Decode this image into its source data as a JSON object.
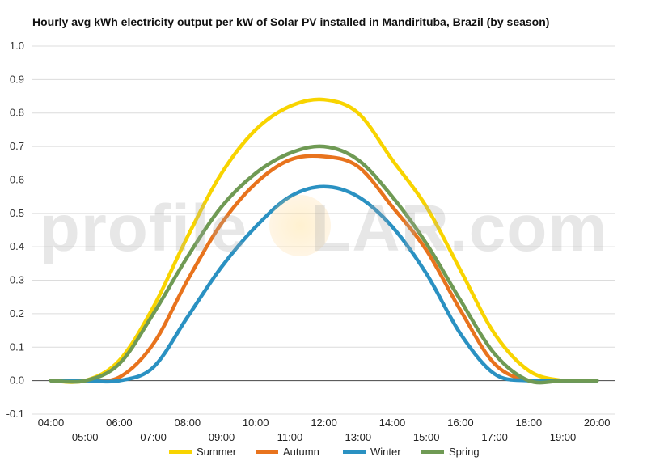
{
  "chart_data": {
    "type": "line",
    "title": "Hourly avg kWh electricity output per kW of Solar PV installed in Mandirituba, Brazil (by season)",
    "xlabel": "",
    "ylabel": "",
    "ylim": [
      -0.1,
      1.0
    ],
    "yticks": [
      "1.0",
      "0.9",
      "0.8",
      "0.7",
      "0.6",
      "0.5",
      "0.4",
      "0.3",
      "0.2",
      "0.1",
      "0.0",
      "-0.1"
    ],
    "categories": [
      "04:00",
      "05:00",
      "06:00",
      "07:00",
      "08:00",
      "09:00",
      "10:00",
      "11:00",
      "12:00",
      "13:00",
      "14:00",
      "15:00",
      "16:00",
      "17:00",
      "18:00",
      "19:00",
      "20:00"
    ],
    "grid": true,
    "legend": "bottom",
    "series": [
      {
        "name": "Summer",
        "color": "#f8d400",
        "values": [
          0.0,
          0.0,
          0.06,
          0.22,
          0.43,
          0.62,
          0.75,
          0.82,
          0.84,
          0.8,
          0.66,
          0.52,
          0.33,
          0.14,
          0.03,
          0.0,
          0.0
        ]
      },
      {
        "name": "Autumn",
        "color": "#e8731d",
        "values": [
          0.0,
          0.0,
          0.01,
          0.11,
          0.3,
          0.47,
          0.59,
          0.66,
          0.67,
          0.64,
          0.52,
          0.39,
          0.21,
          0.05,
          0.0,
          0.0,
          0.0
        ]
      },
      {
        "name": "Winter",
        "color": "#2a91c2",
        "values": [
          0.0,
          0.0,
          0.0,
          0.04,
          0.19,
          0.34,
          0.46,
          0.55,
          0.58,
          0.55,
          0.46,
          0.32,
          0.14,
          0.02,
          0.0,
          0.0,
          0.0
        ]
      },
      {
        "name": "Spring",
        "color": "#6f9a54",
        "values": [
          0.0,
          0.0,
          0.05,
          0.2,
          0.37,
          0.52,
          0.62,
          0.68,
          0.7,
          0.66,
          0.55,
          0.41,
          0.24,
          0.08,
          0.0,
          0.0,
          0.0
        ]
      }
    ]
  },
  "watermark": {
    "text_before": "profile",
    "text_after": "LAR.com",
    "logo": "sun-logo"
  }
}
